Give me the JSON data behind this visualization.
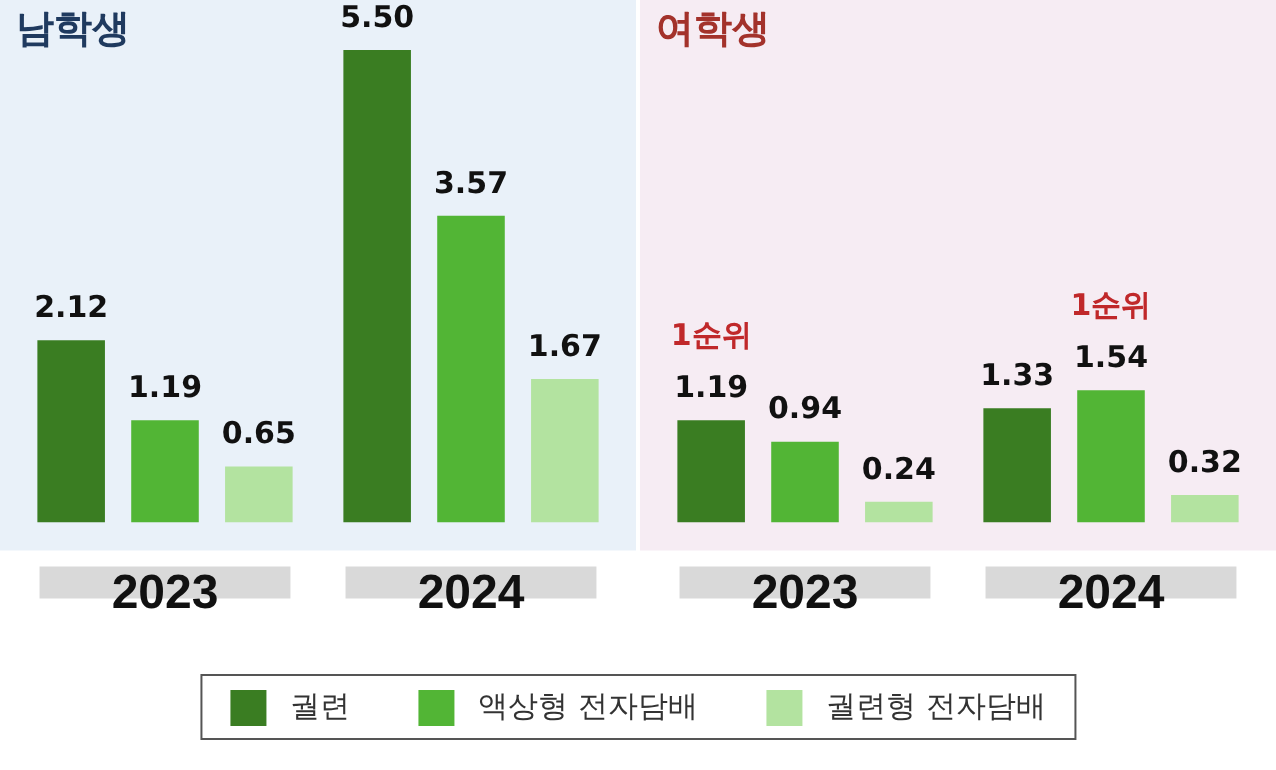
{
  "chart_data": [
    {
      "type": "bar",
      "title": "남학생",
      "categories": [
        "2023",
        "2024"
      ],
      "series": [
        {
          "name": "궐련",
          "color": "#3a7d22",
          "values": [
            2.12,
            5.5
          ],
          "value_labels": [
            "2.12",
            "5.50"
          ]
        },
        {
          "name": "액상형 전자담배",
          "color": "#52b535",
          "values": [
            1.19,
            3.57
          ],
          "value_labels": [
            "1.19",
            "3.57"
          ]
        },
        {
          "name": "궐련형 전자담배",
          "color": "#b3e3a0",
          "values": [
            0.65,
            1.67
          ],
          "value_labels": [
            "0.65",
            "1.67"
          ]
        }
      ],
      "tick_labels": "x",
      "legend": "bottom"
    },
    {
      "type": "bar",
      "title": "여학생",
      "categories": [
        "2023",
        "2024"
      ],
      "series": [
        {
          "color": "#3a7d22",
          "values": [
            1.19,
            1.33
          ],
          "value_labels": [
            "1.19",
            "1.33"
          ]
        },
        {
          "color": "#52b535",
          "values": [
            0.94,
            1.54
          ],
          "value_labels": [
            "0.94",
            "1.54"
          ]
        },
        {
          "color": "#b3e3a0",
          "values": [
            0.24,
            0.32
          ],
          "value_labels": [
            "0.24",
            "0.32"
          ]
        }
      ],
      "tick_labels": "x",
      "annotations": [
        "1순위",
        "1순위"
      ]
    }
  ]
}
